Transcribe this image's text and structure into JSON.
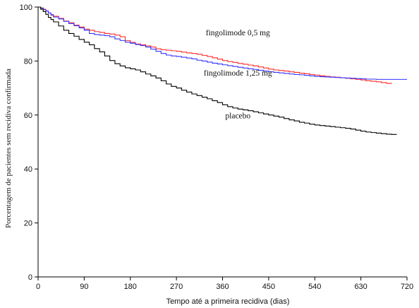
{
  "chart_data": {
    "type": "line",
    "xlabel": "Tempo até a primeira recidiva (dias)",
    "ylabel": "Porcentagem de pacientes sem recidiva confirmada",
    "xlim": [
      0,
      720
    ],
    "ylim": [
      0,
      100
    ],
    "x_ticks": [
      0,
      90,
      180,
      270,
      360,
      450,
      540,
      630,
      720
    ],
    "y_ticks": [
      0,
      20,
      40,
      60,
      80,
      100
    ],
    "grid": false,
    "legend": "inline labels",
    "series": [
      {
        "name": "fingolimode 0,5 mg",
        "color": "#ff2a2a",
        "points": [
          [
            0,
            100
          ],
          [
            5,
            99.7
          ],
          [
            10,
            99.2
          ],
          [
            15,
            98.6
          ],
          [
            20,
            97.8
          ],
          [
            25,
            97.2
          ],
          [
            30,
            96.6
          ],
          [
            40,
            95.8
          ],
          [
            50,
            94.8
          ],
          [
            60,
            94.2
          ],
          [
            70,
            93.3
          ],
          [
            80,
            92.6
          ],
          [
            90,
            91.8
          ],
          [
            100,
            91.4
          ],
          [
            110,
            90.9
          ],
          [
            120,
            90.6
          ],
          [
            130,
            90.2
          ],
          [
            140,
            90.0
          ],
          [
            150,
            89.6
          ],
          [
            160,
            89.0
          ],
          [
            170,
            87.6
          ],
          [
            180,
            86.9
          ],
          [
            190,
            86.3
          ],
          [
            200,
            86.0
          ],
          [
            210,
            85.6
          ],
          [
            220,
            85.2
          ],
          [
            230,
            84.5
          ],
          [
            240,
            84.2
          ],
          [
            250,
            84.0
          ],
          [
            260,
            83.8
          ],
          [
            270,
            83.6
          ],
          [
            280,
            83.3
          ],
          [
            290,
            83.0
          ],
          [
            300,
            82.8
          ],
          [
            310,
            82.5
          ],
          [
            320,
            82.1
          ],
          [
            330,
            81.7
          ],
          [
            340,
            81.2
          ],
          [
            350,
            80.7
          ],
          [
            360,
            80.2
          ],
          [
            370,
            79.8
          ],
          [
            380,
            79.5
          ],
          [
            390,
            79.1
          ],
          [
            400,
            78.8
          ],
          [
            410,
            78.5
          ],
          [
            420,
            78.2
          ],
          [
            430,
            77.8
          ],
          [
            440,
            77.4
          ],
          [
            450,
            77.0
          ],
          [
            460,
            76.7
          ],
          [
            470,
            76.5
          ],
          [
            480,
            76.3
          ],
          [
            490,
            76.0
          ],
          [
            500,
            75.8
          ],
          [
            510,
            75.5
          ],
          [
            520,
            75.3
          ],
          [
            530,
            75.0
          ],
          [
            540,
            74.8
          ],
          [
            550,
            74.5
          ],
          [
            560,
            74.3
          ],
          [
            570,
            74.1
          ],
          [
            580,
            74.0
          ],
          [
            590,
            73.8
          ],
          [
            600,
            73.6
          ],
          [
            610,
            73.4
          ],
          [
            620,
            73.2
          ],
          [
            630,
            73.0
          ],
          [
            640,
            72.7
          ],
          [
            650,
            72.5
          ],
          [
            660,
            72.3
          ],
          [
            670,
            72.0
          ],
          [
            680,
            71.7
          ],
          [
            690,
            71.6
          ]
        ]
      },
      {
        "name": "fingolimode 1,25 mg",
        "color": "#3333ff",
        "points": [
          [
            0,
            100
          ],
          [
            5,
            99.6
          ],
          [
            10,
            99.0
          ],
          [
            15,
            98.5
          ],
          [
            20,
            97.8
          ],
          [
            25,
            97.0
          ],
          [
            30,
            96.3
          ],
          [
            40,
            95.6
          ],
          [
            50,
            94.7
          ],
          [
            60,
            93.9
          ],
          [
            70,
            93.1
          ],
          [
            80,
            92.3
          ],
          [
            90,
            91.4
          ],
          [
            100,
            90.2
          ],
          [
            110,
            89.8
          ],
          [
            120,
            89.6
          ],
          [
            130,
            89.4
          ],
          [
            140,
            89.0
          ],
          [
            150,
            88.2
          ],
          [
            160,
            87.6
          ],
          [
            170,
            87.0
          ],
          [
            180,
            86.6
          ],
          [
            190,
            86.1
          ],
          [
            200,
            85.7
          ],
          [
            210,
            85.2
          ],
          [
            220,
            84.4
          ],
          [
            230,
            83.6
          ],
          [
            240,
            82.8
          ],
          [
            250,
            82.2
          ],
          [
            260,
            81.9
          ],
          [
            270,
            81.7
          ],
          [
            280,
            81.4
          ],
          [
            290,
            81.1
          ],
          [
            300,
            80.8
          ],
          [
            310,
            80.3
          ],
          [
            320,
            80.0
          ],
          [
            330,
            79.6
          ],
          [
            340,
            79.2
          ],
          [
            350,
            78.9
          ],
          [
            360,
            78.6
          ],
          [
            370,
            78.3
          ],
          [
            380,
            78.0
          ],
          [
            390,
            77.7
          ],
          [
            400,
            77.4
          ],
          [
            410,
            77.1
          ],
          [
            420,
            76.9
          ],
          [
            430,
            76.6
          ],
          [
            440,
            76.3
          ],
          [
            450,
            76.0
          ],
          [
            460,
            75.8
          ],
          [
            470,
            75.6
          ],
          [
            480,
            75.4
          ],
          [
            490,
            75.2
          ],
          [
            500,
            75.0
          ],
          [
            510,
            74.9
          ],
          [
            520,
            74.7
          ],
          [
            530,
            74.5
          ],
          [
            540,
            74.3
          ],
          [
            550,
            74.2
          ],
          [
            560,
            74.1
          ],
          [
            570,
            74.0
          ],
          [
            580,
            73.9
          ],
          [
            590,
            73.8
          ],
          [
            600,
            73.7
          ],
          [
            610,
            73.6
          ],
          [
            620,
            73.5
          ],
          [
            630,
            73.4
          ],
          [
            640,
            73.3
          ],
          [
            650,
            73.3
          ],
          [
            660,
            73.2
          ],
          [
            680,
            73.2
          ],
          [
            700,
            73.2
          ],
          [
            720,
            73.2
          ]
        ]
      },
      {
        "name": "placebo",
        "color": "#000000",
        "points": [
          [
            0,
            100
          ],
          [
            5,
            99.2
          ],
          [
            10,
            98.3
          ],
          [
            15,
            97.3
          ],
          [
            20,
            96.2
          ],
          [
            25,
            95.4
          ],
          [
            30,
            94.5
          ],
          [
            40,
            93.0
          ],
          [
            50,
            91.4
          ],
          [
            60,
            90.2
          ],
          [
            70,
            89.2
          ],
          [
            80,
            88.0
          ],
          [
            90,
            87.0
          ],
          [
            100,
            86.0
          ],
          [
            110,
            84.6
          ],
          [
            120,
            83.4
          ],
          [
            130,
            81.9
          ],
          [
            140,
            80.2
          ],
          [
            150,
            79.0
          ],
          [
            160,
            78.2
          ],
          [
            170,
            77.5
          ],
          [
            180,
            77.1
          ],
          [
            190,
            76.7
          ],
          [
            200,
            76.0
          ],
          [
            210,
            75.2
          ],
          [
            220,
            74.5
          ],
          [
            230,
            73.7
          ],
          [
            240,
            72.7
          ],
          [
            250,
            71.5
          ],
          [
            260,
            70.6
          ],
          [
            270,
            70.0
          ],
          [
            280,
            69.2
          ],
          [
            290,
            68.5
          ],
          [
            300,
            67.8
          ],
          [
            310,
            67.2
          ],
          [
            320,
            66.6
          ],
          [
            330,
            66.0
          ],
          [
            340,
            65.3
          ],
          [
            350,
            64.6
          ],
          [
            360,
            63.8
          ],
          [
            370,
            63.1
          ],
          [
            380,
            62.6
          ],
          [
            390,
            62.2
          ],
          [
            400,
            61.9
          ],
          [
            410,
            61.6
          ],
          [
            420,
            61.2
          ],
          [
            430,
            60.8
          ],
          [
            440,
            60.4
          ],
          [
            450,
            60.0
          ],
          [
            460,
            59.6
          ],
          [
            470,
            59.2
          ],
          [
            480,
            58.7
          ],
          [
            490,
            58.2
          ],
          [
            500,
            57.8
          ],
          [
            510,
            57.3
          ],
          [
            520,
            57.0
          ],
          [
            530,
            56.6
          ],
          [
            540,
            56.3
          ],
          [
            550,
            56.1
          ],
          [
            560,
            55.9
          ],
          [
            570,
            55.7
          ],
          [
            580,
            55.5
          ],
          [
            590,
            55.3
          ],
          [
            600,
            55.1
          ],
          [
            610,
            54.8
          ],
          [
            620,
            54.4
          ],
          [
            630,
            54.0
          ],
          [
            640,
            53.7
          ],
          [
            650,
            53.5
          ],
          [
            660,
            53.3
          ],
          [
            670,
            53.1
          ],
          [
            680,
            52.9
          ],
          [
            690,
            52.8
          ],
          [
            700,
            52.8
          ]
        ]
      }
    ],
    "labels": [
      {
        "text": "fingolimode 0,5 mg",
        "x": 390,
        "y": 89.5
      },
      {
        "text": "fingolimode 1,25 mg",
        "x": 390,
        "y": 74.6
      },
      {
        "text": "placebo",
        "x": 390,
        "y": 58.8
      }
    ]
  }
}
